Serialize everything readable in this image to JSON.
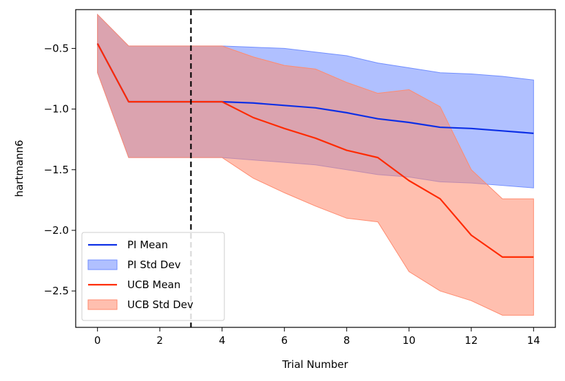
{
  "chart_data": {
    "type": "line",
    "xlabel": "Trial Number",
    "ylabel": "hartmann6",
    "xlim": [
      -0.7,
      14.7
    ],
    "ylim": [
      -2.8,
      -0.18
    ],
    "xticks": [
      0,
      2,
      4,
      6,
      8,
      10,
      12,
      14
    ],
    "xtick_labels": [
      "0",
      "2",
      "4",
      "6",
      "8",
      "10",
      "12",
      "14"
    ],
    "yticks": [
      -0.5,
      -1.0,
      -1.5,
      -2.0,
      -2.5
    ],
    "ytick_labels": [
      "−0.5",
      "−1.0",
      "−1.5",
      "−2.0",
      "−2.5"
    ],
    "grid": false,
    "legend_position": "lower-left",
    "vline": {
      "x": 3,
      "style": "dashed",
      "color": "#000000"
    },
    "x": [
      0,
      1,
      2,
      3,
      4,
      5,
      6,
      7,
      8,
      9,
      10,
      11,
      12,
      13,
      14
    ],
    "series": [
      {
        "name": "PI Mean",
        "band_name": "PI Std Dev",
        "color": "#0b2ee6",
        "band_color": "#6f8cff",
        "values": [
          -0.46,
          -0.94,
          -0.94,
          -0.94,
          -0.94,
          -0.95,
          -0.97,
          -0.99,
          -1.03,
          -1.08,
          -1.11,
          -1.15,
          -1.16,
          -1.18,
          -1.2
        ],
        "upper": [
          -0.22,
          -0.48,
          -0.48,
          -0.48,
          -0.48,
          -0.49,
          -0.5,
          -0.53,
          -0.56,
          -0.62,
          -0.66,
          -0.7,
          -0.71,
          -0.73,
          -0.76
        ],
        "lower": [
          -0.7,
          -1.4,
          -1.4,
          -1.4,
          -1.4,
          -1.42,
          -1.44,
          -1.46,
          -1.5,
          -1.54,
          -1.56,
          -1.6,
          -1.61,
          -1.63,
          -1.65
        ]
      },
      {
        "name": "UCB Mean",
        "band_name": "UCB Std Dev",
        "color": "#ff2a00",
        "band_color": "#ff8a6e",
        "values": [
          -0.46,
          -0.94,
          -0.94,
          -0.94,
          -0.94,
          -1.07,
          -1.16,
          -1.24,
          -1.34,
          -1.4,
          -1.59,
          -1.74,
          -2.04,
          -2.22,
          -2.22
        ],
        "upper": [
          -0.22,
          -0.48,
          -0.48,
          -0.48,
          -0.48,
          -0.57,
          -0.64,
          -0.67,
          -0.78,
          -0.87,
          -0.84,
          -0.98,
          -1.5,
          -1.74,
          -1.74
        ],
        "lower": [
          -0.7,
          -1.4,
          -1.4,
          -1.4,
          -1.4,
          -1.57,
          -1.69,
          -1.8,
          -1.9,
          -1.93,
          -2.34,
          -2.5,
          -2.58,
          -2.7,
          -2.7
        ]
      }
    ]
  }
}
